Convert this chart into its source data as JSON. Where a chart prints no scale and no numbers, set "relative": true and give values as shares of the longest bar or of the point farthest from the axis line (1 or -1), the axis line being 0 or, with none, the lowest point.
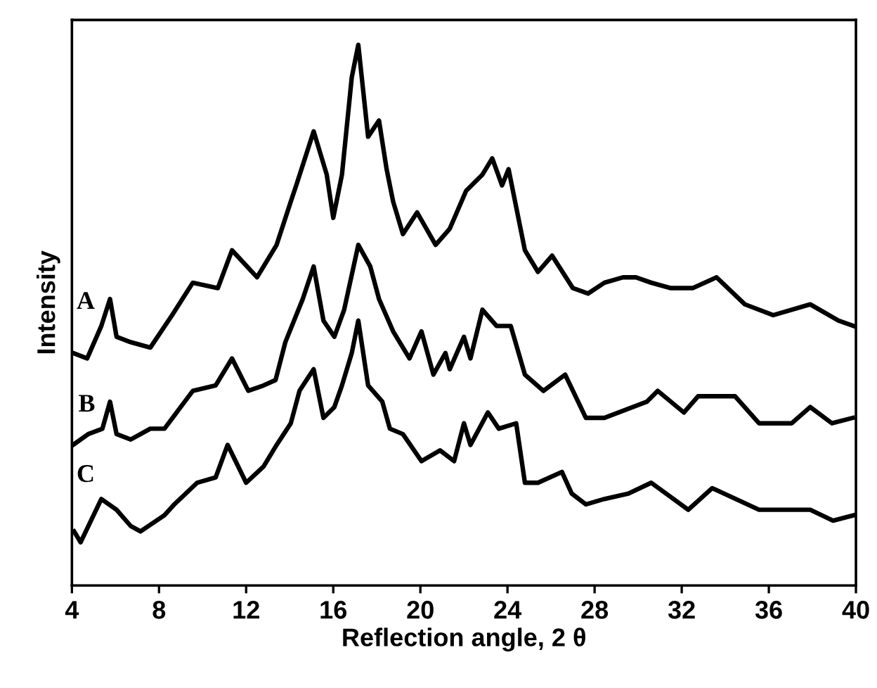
{
  "chart_data": {
    "type": "line",
    "xlabel": "Reflection angle, 2 θ",
    "ylabel": "Intensity",
    "relative": true,
    "xlim": [
      4,
      40
    ],
    "xticks": [
      4,
      8,
      12,
      16,
      20,
      24,
      28,
      32,
      36,
      40
    ],
    "tick_labels": "x",
    "grid": false,
    "series": [
      {
        "name": "A",
        "color": "#000000",
        "x": [
          4.05,
          4.7,
          5.35,
          5.75,
          6.05,
          6.7,
          7.6,
          8.6,
          9.55,
          10.7,
          11.35,
          12.5,
          13.4,
          14.05,
          14.3,
          15.1,
          15.7,
          16.0,
          16.4,
          16.85,
          17.15,
          17.6,
          18.1,
          18.45,
          18.75,
          19.2,
          19.85,
          20.7,
          21.35,
          22.1,
          22.85,
          23.3,
          23.75,
          24.05,
          24.4,
          24.8,
          25.4,
          26.05,
          27.0,
          27.7,
          28.45,
          29.3,
          29.9,
          30.6,
          31.5,
          32.5,
          33.6,
          34.9,
          36.2,
          37.9,
          39.2,
          39.9
        ],
        "values": [
          0.43,
          0.42,
          0.48,
          0.53,
          0.46,
          0.45,
          0.44,
          0.5,
          0.56,
          0.55,
          0.62,
          0.57,
          0.63,
          0.71,
          0.74,
          0.84,
          0.76,
          0.68,
          0.76,
          0.94,
          1.0,
          0.83,
          0.86,
          0.77,
          0.71,
          0.65,
          0.69,
          0.63,
          0.66,
          0.73,
          0.76,
          0.79,
          0.74,
          0.77,
          0.7,
          0.62,
          0.58,
          0.61,
          0.55,
          0.54,
          0.56,
          0.57,
          0.57,
          0.56,
          0.55,
          0.55,
          0.57,
          0.52,
          0.5,
          0.52,
          0.49,
          0.48
        ]
      },
      {
        "name": "B",
        "color": "#000000",
        "x": [
          4.05,
          4.75,
          5.4,
          5.75,
          6.05,
          6.7,
          7.6,
          8.25,
          9.55,
          10.6,
          11.35,
          12.1,
          12.8,
          13.35,
          13.8,
          14.6,
          15.1,
          15.55,
          16.05,
          16.5,
          17.15,
          17.7,
          18.1,
          18.75,
          19.5,
          20.05,
          20.6,
          21.15,
          21.35,
          22.0,
          22.3,
          22.85,
          23.5,
          24.15,
          24.8,
          25.65,
          26.65,
          27.6,
          28.45,
          30.4,
          30.9,
          32.1,
          32.75,
          34.45,
          35.55,
          37.05,
          37.9,
          38.9,
          39.85
        ],
        "values": [
          0.26,
          0.28,
          0.29,
          0.34,
          0.28,
          0.27,
          0.29,
          0.29,
          0.36,
          0.37,
          0.42,
          0.36,
          0.37,
          0.38,
          0.45,
          0.53,
          0.59,
          0.49,
          0.46,
          0.51,
          0.63,
          0.59,
          0.53,
          0.47,
          0.42,
          0.47,
          0.39,
          0.43,
          0.4,
          0.46,
          0.42,
          0.51,
          0.48,
          0.48,
          0.39,
          0.36,
          0.39,
          0.31,
          0.31,
          0.34,
          0.36,
          0.32,
          0.35,
          0.35,
          0.3,
          0.3,
          0.33,
          0.3,
          0.31
        ]
      },
      {
        "name": "C",
        "color": "#000000",
        "x": [
          4.1,
          4.4,
          5.35,
          6.05,
          6.7,
          7.15,
          8.25,
          8.7,
          9.75,
          10.6,
          11.15,
          12.0,
          12.8,
          13.4,
          14.05,
          14.45,
          15.1,
          15.55,
          16.05,
          16.4,
          16.85,
          17.15,
          17.6,
          18.25,
          18.6,
          19.2,
          20.05,
          20.9,
          21.55,
          22.0,
          22.3,
          23.1,
          23.6,
          24.4,
          24.8,
          25.4,
          26.5,
          26.95,
          27.6,
          28.45,
          29.55,
          30.6,
          32.3,
          33.4,
          35.55,
          36.8,
          37.9,
          38.95,
          39.9
        ],
        "values": [
          0.1,
          0.08,
          0.16,
          0.14,
          0.11,
          0.1,
          0.13,
          0.15,
          0.19,
          0.2,
          0.26,
          0.19,
          0.22,
          0.26,
          0.3,
          0.36,
          0.4,
          0.31,
          0.33,
          0.37,
          0.43,
          0.49,
          0.37,
          0.34,
          0.29,
          0.28,
          0.23,
          0.25,
          0.23,
          0.3,
          0.26,
          0.32,
          0.29,
          0.3,
          0.19,
          0.19,
          0.21,
          0.17,
          0.15,
          0.16,
          0.17,
          0.19,
          0.14,
          0.18,
          0.14,
          0.14,
          0.14,
          0.12,
          0.13
        ]
      }
    ]
  }
}
